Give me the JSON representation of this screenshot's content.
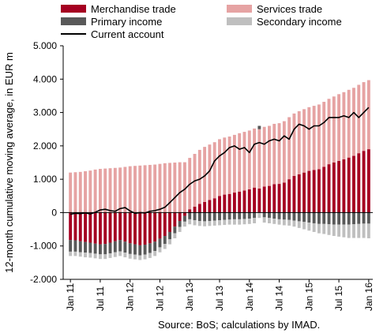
{
  "chart_data": {
    "type": "bar",
    "subtype": "stacked bar with line",
    "title": "",
    "xlabel": "",
    "ylabel": "12-month cumulative moving average, in EUR m",
    "ylim": [
      -2000,
      5000
    ],
    "yticks": [
      -2000,
      -1000,
      0,
      1000,
      2000,
      3000,
      4000,
      5000
    ],
    "ytick_labels": [
      "-2.000",
      "-1.000",
      "0",
      "1.000",
      "2.000",
      "3.000",
      "4.000",
      "5.000"
    ],
    "xtick_labels": [
      "Jan 11",
      "Jul 11",
      "Jan 12",
      "Jul 12",
      "Jan 13",
      "Jul 13",
      "Jan 14",
      "Jul 14",
      "Jan 15",
      "Jul 15",
      "Jan 16"
    ],
    "xtick_index": [
      0,
      6,
      12,
      18,
      24,
      30,
      36,
      42,
      48,
      54,
      60
    ],
    "grid": false,
    "legend_position": "top",
    "source": "Source: BoS; calculations by IMAD.",
    "colors": {
      "merchandise": "#A50021",
      "services": "#E6A3A3",
      "primary": "#595959",
      "secondary": "#BFBFBF",
      "current": "#000000"
    },
    "series": [
      {
        "name": "Merchandise trade",
        "key": "merchandise",
        "values": [
          -820,
          -830,
          -860,
          -880,
          -900,
          -930,
          -950,
          -940,
          -900,
          -860,
          -820,
          -870,
          -920,
          -950,
          -980,
          -960,
          -920,
          -870,
          -780,
          -700,
          -580,
          -420,
          -250,
          -100,
          100,
          180,
          260,
          320,
          380,
          430,
          500,
          540,
          560,
          600,
          630,
          660,
          700,
          750,
          720,
          780,
          800,
          850,
          860,
          900,
          1000,
          1100,
          1150,
          1200,
          1250,
          1280,
          1300,
          1370,
          1450,
          1500,
          1550,
          1600,
          1650,
          1700,
          1780,
          1850,
          1900
        ]
      },
      {
        "name": "Services trade",
        "key": "services",
        "values": [
          1200,
          1210,
          1220,
          1240,
          1260,
          1290,
          1310,
          1320,
          1330,
          1340,
          1350,
          1370,
          1390,
          1400,
          1410,
          1420,
          1430,
          1440,
          1460,
          1480,
          1490,
          1500,
          1510,
          1510,
          1540,
          1580,
          1620,
          1650,
          1660,
          1680,
          1700,
          1710,
          1720,
          1730,
          1750,
          1760,
          1760,
          1770,
          1780,
          1790,
          1800,
          1810,
          1820,
          1840,
          1860,
          1870,
          1890,
          1900,
          1910,
          1920,
          1940,
          1950,
          1960,
          1980,
          2000,
          2010,
          2030,
          2040,
          2050,
          2060,
          2070
        ]
      },
      {
        "name": "Primary income",
        "key": "primary",
        "values": [
          -350,
          -340,
          -330,
          -320,
          -310,
          -300,
          -300,
          -310,
          -320,
          -330,
          -340,
          -330,
          -320,
          -310,
          -300,
          -300,
          -290,
          -280,
          -260,
          -240,
          -220,
          -200,
          -180,
          -170,
          -200,
          -230,
          -250,
          -260,
          -250,
          -240,
          -230,
          -220,
          -210,
          -200,
          -200,
          -190,
          -180,
          -160,
          100,
          -140,
          -160,
          -180,
          -200,
          -210,
          -220,
          -240,
          -260,
          -280,
          -300,
          -320,
          -340,
          -340,
          -350,
          -360,
          -360,
          -360,
          -360,
          -350,
          -340,
          -330,
          -330
        ]
      },
      {
        "name": "Secondary income",
        "key": "secondary",
        "values": [
          -130,
          -130,
          -130,
          -140,
          -140,
          -140,
          -140,
          -140,
          -140,
          -140,
          -140,
          -140,
          -140,
          -140,
          -140,
          -140,
          -150,
          -150,
          -150,
          -150,
          -150,
          -150,
          -150,
          -150,
          -150,
          -150,
          -150,
          -150,
          -150,
          -150,
          -150,
          -150,
          -150,
          -160,
          -160,
          -160,
          -160,
          -160,
          -160,
          -160,
          -160,
          -160,
          -160,
          -170,
          -170,
          -180,
          -200,
          -220,
          -240,
          -260,
          -280,
          -300,
          -320,
          -340,
          -360,
          -380,
          -400,
          -410,
          -420,
          -430,
          -440
        ]
      },
      {
        "name": "Current account",
        "key": "current",
        "values": [
          -50,
          -20,
          -30,
          -10,
          -40,
          10,
          80,
          100,
          60,
          40,
          120,
          150,
          50,
          -20,
          0,
          -10,
          40,
          60,
          100,
          160,
          300,
          450,
          600,
          700,
          850,
          950,
          1000,
          1100,
          1250,
          1550,
          1700,
          1800,
          1950,
          2000,
          1900,
          1950,
          1800,
          2050,
          2100,
          2050,
          2150,
          2200,
          2150,
          2300,
          2200,
          2500,
          2650,
          2600,
          2500,
          2600,
          2600,
          2700,
          2850,
          2850,
          2850,
          2900,
          2850,
          3000,
          2850,
          3000,
          3150
        ]
      }
    ]
  }
}
